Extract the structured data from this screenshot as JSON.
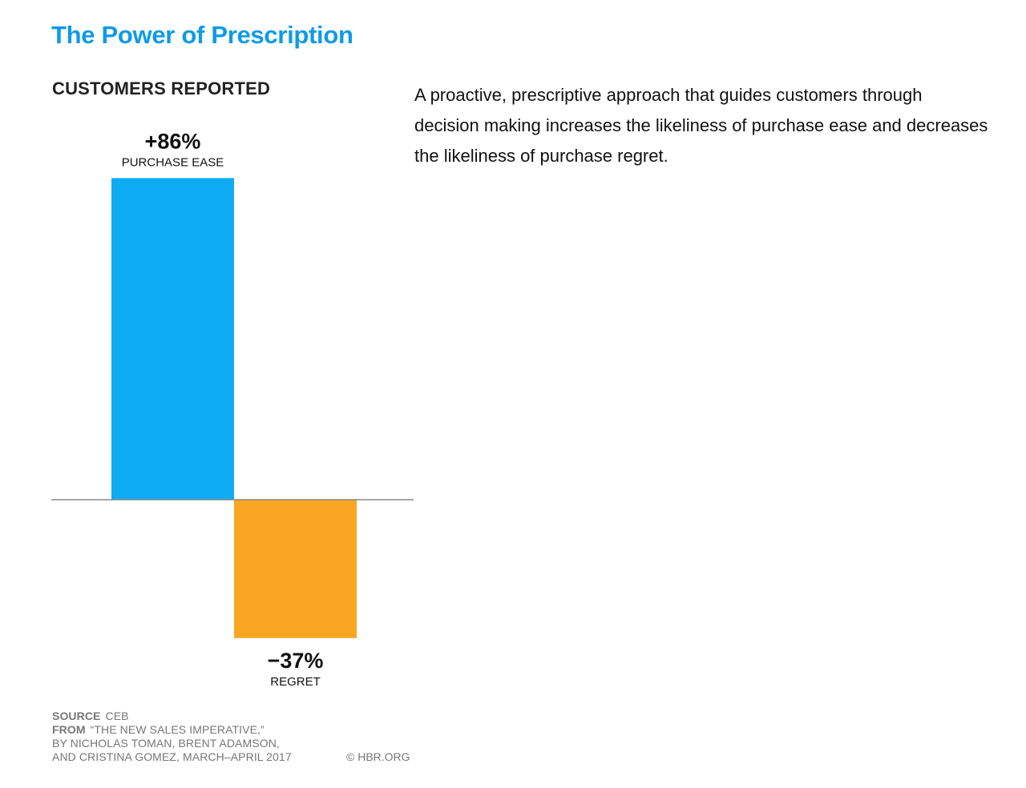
{
  "header": {
    "title": "The Power of Prescription",
    "subtitle": "CUSTOMERS REPORTED",
    "description": "A proactive, prescriptive approach that guides customers through decision making increases the likeliness of purchase ease and decreases the likeliness of purchase regret."
  },
  "chart_data": {
    "type": "bar",
    "title": "CUSTOMERS REPORTED",
    "categories": [
      "PURCHASE EASE",
      "REGRET"
    ],
    "values": [
      86,
      -37
    ],
    "value_labels": [
      "+86%",
      "−37%"
    ],
    "colors": [
      "#0eabf5",
      "#f9a623"
    ],
    "baseline_color": "#888888",
    "unit": "%",
    "ylim": [
      -37,
      86
    ],
    "xlabel": "",
    "ylabel": "",
    "grid": false
  },
  "footer": {
    "source_key": "SOURCE",
    "source_value": "CEB",
    "from_key": "FROM",
    "from_line1": "“THE NEW SALES IMPERATIVE,”",
    "from_line2": "BY NICHOLAS TOMAN, BRENT ADAMSON,",
    "from_line3": "AND CRISTINA GOMEZ, MARCH–APRIL 2017",
    "copyright": "© HBR.ORG"
  }
}
